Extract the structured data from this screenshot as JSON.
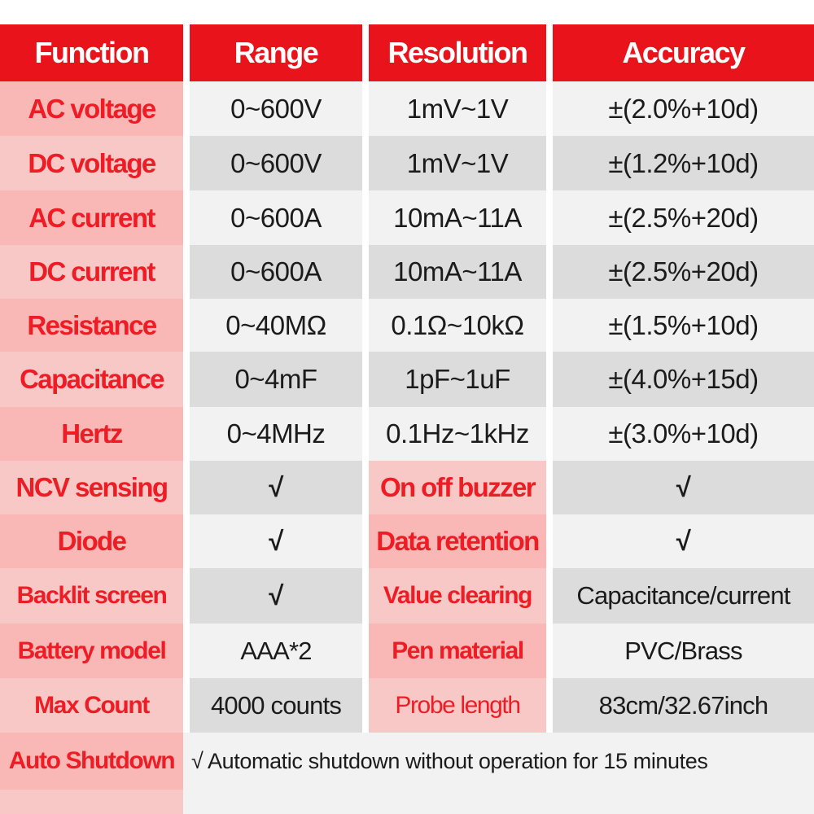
{
  "header": {
    "function": "Function",
    "range": "Range",
    "resolution": "Resolution",
    "accuracy": "Accuracy"
  },
  "rows": [
    {
      "function": "AC voltage",
      "range": "0~600V",
      "resolution": "1mV~1V",
      "accuracy": "±(2.0%+10d)"
    },
    {
      "function": "DC voltage",
      "range": "0~600V",
      "resolution": "1mV~1V",
      "accuracy": "±(1.2%+10d)"
    },
    {
      "function": "AC current",
      "range": "0~600A",
      "resolution": "10mA~11A",
      "accuracy": "±(2.5%+20d)"
    },
    {
      "function": "DC current",
      "range": "0~600A",
      "resolution": "10mA~11A",
      "accuracy": "±(2.5%+20d)"
    },
    {
      "function": "Resistance",
      "range": "0~40MΩ",
      "resolution": "0.1Ω~10kΩ",
      "accuracy": "±(1.5%+10d)"
    },
    {
      "function": "Capacitance",
      "range": "0~4mF",
      "resolution": "1pF~1uF",
      "accuracy": "±(4.0%+15d)"
    },
    {
      "function": "Hertz",
      "range": "0~4MHz",
      "resolution": "0.1Hz~1kHz",
      "accuracy": "±(3.0%+10d)"
    }
  ],
  "features": [
    {
      "label": "NCV sensing",
      "value": "√",
      "label2": "On off buzzer",
      "value2": "√"
    },
    {
      "label": "Diode",
      "value": "√",
      "label2": "Data retention",
      "value2": "√"
    },
    {
      "label": "Backlit screen",
      "value": "√",
      "label2": "Value clearing",
      "value2": "Capacitance/current"
    },
    {
      "label": "Battery model",
      "value": "AAA*2",
      "label2": "Pen material",
      "value2": "PVC/Brass"
    },
    {
      "label": "Max Count",
      "value": "4000 counts",
      "label2": "Probe length",
      "value2": "83cm/32.67inch"
    }
  ],
  "auto_shutdown": {
    "label": "Auto Shutdown",
    "value": "√ Automatic shutdown without operation for 15 minutes"
  },
  "colors": {
    "header_red": "#e8131b",
    "label_red": "#ee1c25",
    "pink": "#f9b8b6",
    "row_light": "#f2f2f2",
    "row_dark": "#dcdcdc"
  }
}
